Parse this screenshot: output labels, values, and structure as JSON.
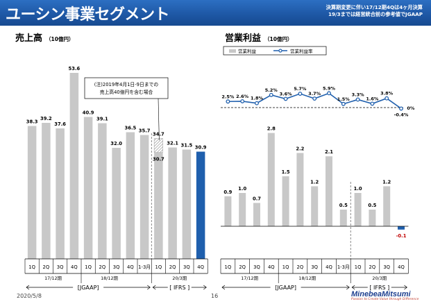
{
  "header": {
    "title": "ユーシン事業セグメント",
    "note_line1": "決算期変更に伴い17/12期4Qは4ヶ月決算",
    "note_line2": "19/3までは経営統合前の参考値でJGAAP"
  },
  "colors": {
    "bar": "#c8c8c8",
    "highlight": "#1f5fad",
    "line": "#1f5fad",
    "header": "#1d56a3"
  },
  "left_chart": {
    "title": "売上高",
    "unit": "（10億円）",
    "annotation_line1": "(注)2019年4月1日-9日までの",
    "annotation_line2": "売上高40億円を含む場合"
  },
  "right_chart": {
    "title": "営業利益",
    "unit": "（10億円）",
    "legend_bar": "営業利益",
    "legend_line": "営業利益率"
  },
  "axis": {
    "quarters": [
      "1Q",
      "2Q",
      "3Q",
      "4Q",
      "1Q",
      "2Q",
      "3Q",
      "4Q",
      "1-3月",
      "1Q",
      "2Q",
      "3Q",
      "4Q"
    ],
    "period_labels": [
      "17/12期",
      "18/12期",
      "20/3期"
    ],
    "bracket_labels": [
      "[JGAAP]",
      "[ IFRS ]"
    ]
  },
  "chart_data": [
    {
      "type": "bar",
      "title": "売上高",
      "unit": "10億円",
      "categories": [
        "1Q",
        "2Q",
        "3Q",
        "4Q",
        "1Q",
        "2Q",
        "3Q",
        "4Q",
        "1-3月",
        "1Q",
        "2Q",
        "3Q",
        "4Q"
      ],
      "values": [
        38.3,
        39.2,
        37.6,
        53.6,
        40.9,
        39.1,
        32.0,
        36.5,
        35.7,
        34.7,
        32.1,
        31.5,
        30.9
      ],
      "value_labels": [
        "38.3",
        "39.2",
        "37.6",
        "53.6",
        "40.9",
        "39.1",
        "32.0",
        "36.5",
        "35.7",
        "34.7",
        "32.1",
        "31.5",
        "30.9"
      ],
      "alt_value": 30.7,
      "alt_value_label": "30.7",
      "alt_index": 9,
      "highlight_index": 12,
      "ylim": [
        0,
        60
      ]
    },
    {
      "type": "bar",
      "title": "営業利益",
      "unit": "10億円",
      "categories": [
        "1Q",
        "2Q",
        "3Q",
        "4Q",
        "1Q",
        "2Q",
        "3Q",
        "4Q",
        "1-3月",
        "1Q",
        "2Q",
        "3Q",
        "4Q"
      ],
      "values": [
        0.9,
        1.0,
        0.7,
        2.8,
        1.5,
        2.2,
        1.2,
        2.1,
        0.5,
        1.0,
        0.5,
        1.2,
        -0.1
      ],
      "value_labels": [
        "0.9",
        "1.0",
        "0.7",
        "2.8",
        "1.5",
        "2.2",
        "1.2",
        "2.1",
        "0.5",
        "1.0",
        "0.5",
        "1.2",
        "-0.1"
      ],
      "highlight_index": 12,
      "ylim": [
        -0.3,
        3.0
      ],
      "margin_series": {
        "name": "営業利益率",
        "values": [
          2.5,
          2.6,
          1.8,
          5.2,
          3.6,
          5.7,
          3.7,
          5.9,
          1.5,
          3.3,
          1.6,
          3.8,
          -0.4
        ],
        "value_labels": [
          "2.5%",
          "2.6%",
          "1.8%",
          "5.2%",
          "3.6%",
          "5.7%",
          "3.7%",
          "5.9%",
          "1.5%",
          "3.3%",
          "1.6%",
          "3.8%",
          "-0.4%"
        ],
        "zero_label": "0%",
        "ylim": [
          -0.6,
          6.5
        ]
      }
    }
  ]
}
